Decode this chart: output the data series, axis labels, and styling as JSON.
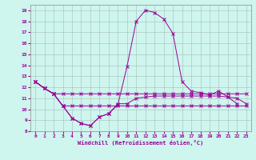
{
  "xlabel": "Windchill (Refroidissement éolien,°C)",
  "bg_color": "#cef5ee",
  "grid_color": "#b0c8c4",
  "line_color": "#990099",
  "ylim": [
    8,
    19.5
  ],
  "xlim": [
    -0.5,
    23.5
  ],
  "yticks": [
    8,
    9,
    10,
    11,
    12,
    13,
    14,
    15,
    16,
    17,
    18,
    19
  ],
  "xticks": [
    0,
    1,
    2,
    3,
    4,
    5,
    6,
    7,
    8,
    9,
    10,
    11,
    12,
    13,
    14,
    15,
    16,
    17,
    18,
    19,
    20,
    21,
    22,
    23
  ],
  "series1_x": [
    0,
    1,
    2,
    3,
    4,
    5,
    6,
    7,
    8,
    9,
    10,
    11,
    12,
    13,
    14,
    15,
    16,
    17,
    18,
    19,
    20,
    21,
    22,
    23
  ],
  "series1_y": [
    12.5,
    11.9,
    11.4,
    10.3,
    9.2,
    8.7,
    8.5,
    9.3,
    9.6,
    10.5,
    10.5,
    11.0,
    11.1,
    11.2,
    11.2,
    11.2,
    11.2,
    11.2,
    11.2,
    11.2,
    11.2,
    11.1,
    11.0,
    10.5
  ],
  "series2_x": [
    0,
    1,
    2,
    3,
    4,
    5,
    6,
    7,
    8,
    9,
    10,
    11,
    12,
    13,
    14,
    15,
    16,
    17,
    18,
    19,
    20,
    21,
    22
  ],
  "series2_y": [
    12.5,
    11.9,
    11.4,
    10.3,
    9.2,
    8.7,
    8.5,
    9.3,
    9.6,
    10.4,
    13.9,
    18.0,
    19.0,
    18.8,
    18.2,
    16.9,
    12.5,
    11.65,
    11.5,
    11.3,
    11.65,
    11.1,
    10.5
  ],
  "series3_x": [
    0,
    1,
    2,
    3,
    4,
    5,
    6,
    7,
    8,
    9,
    10,
    11,
    12,
    13,
    14,
    15,
    16,
    17,
    18,
    19,
    20,
    21,
    22,
    23
  ],
  "series3_y": [
    12.5,
    11.9,
    11.4,
    11.4,
    11.4,
    11.4,
    11.4,
    11.4,
    11.4,
    11.4,
    11.4,
    11.4,
    11.4,
    11.4,
    11.4,
    11.4,
    11.4,
    11.4,
    11.4,
    11.4,
    11.4,
    11.4,
    11.4,
    11.4
  ],
  "series4_x": [
    0,
    1,
    2,
    3,
    4,
    5,
    6,
    7,
    8,
    9,
    10,
    11,
    12,
    13,
    14,
    15,
    16,
    17,
    18,
    19,
    20,
    21,
    22,
    23
  ],
  "series4_y": [
    12.5,
    11.9,
    11.4,
    10.3,
    10.3,
    10.3,
    10.3,
    10.3,
    10.3,
    10.3,
    10.3,
    10.3,
    10.3,
    10.3,
    10.3,
    10.3,
    10.3,
    10.3,
    10.3,
    10.3,
    10.3,
    10.3,
    10.3,
    10.3
  ]
}
